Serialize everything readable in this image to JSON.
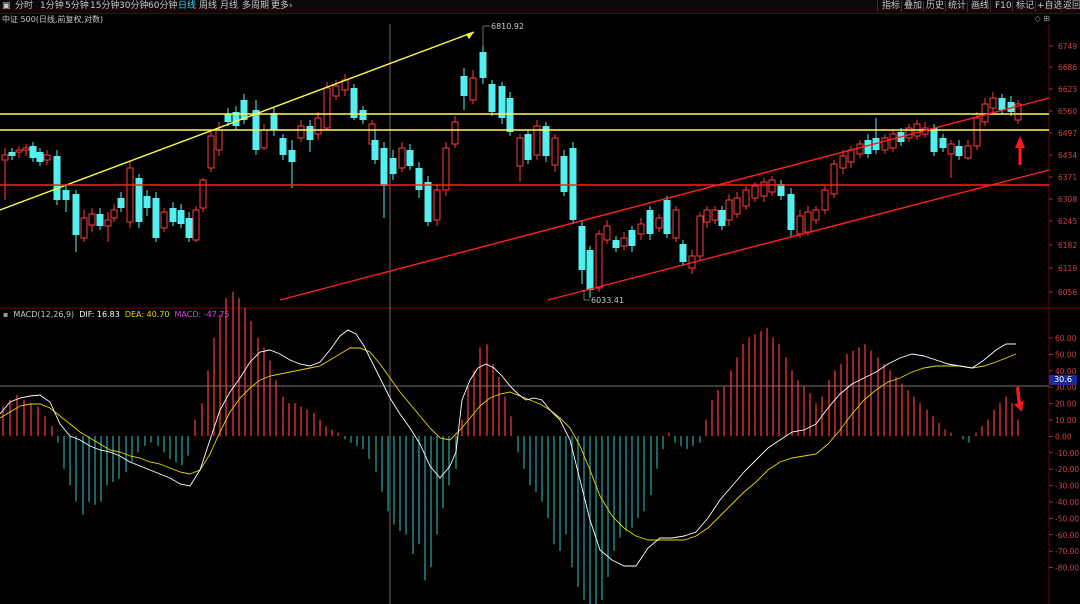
{
  "toolbar": {
    "left_items": [
      "分时",
      "1分钟",
      "5分钟",
      "15分钟",
      "30分钟",
      "60分钟",
      "日线",
      "周线",
      "月线",
      "多周期",
      "更多"
    ],
    "active": "日线",
    "more_arrow": "›",
    "right_items": [
      "指标",
      "叠加",
      "历史",
      "统计",
      "画线",
      "F10",
      "标记",
      "+自选",
      "返回"
    ]
  },
  "title": "中证 500(日线,前复权,对数)",
  "price_axis": {
    "ticks": [
      "6749",
      "6686",
      "6623",
      "6560",
      "6497",
      "6434",
      "6371",
      "6308",
      "6245",
      "6182",
      "6119",
      "6056"
    ],
    "high_label": "6810.92",
    "low_label": "6033.41"
  },
  "macd": {
    "label": "MACD(12,26,9)",
    "dif": "DIF: 16.83",
    "dea": "DEA: 40.70",
    "macd": "MACD: -47.75",
    "dif_color": "#ffffff",
    "dea_color": "#e8d800",
    "macd_color": "#e040e0",
    "ticks": [
      "60.00",
      "50.00",
      "40.00",
      "30.00",
      "20.00",
      "10.00",
      "0.00",
      "-10.00",
      "-20.00",
      "-30.00",
      "-40.00",
      "-50.00",
      "-60.00",
      "-70.00",
      "-80.00"
    ],
    "cursor_value": "30.6"
  },
  "colors": {
    "up": "#ff3d3d",
    "down": "#54f0f0",
    "trend_yellow": "#ffff40",
    "trend_red": "#ff2020",
    "axis": "#d04040"
  }
}
